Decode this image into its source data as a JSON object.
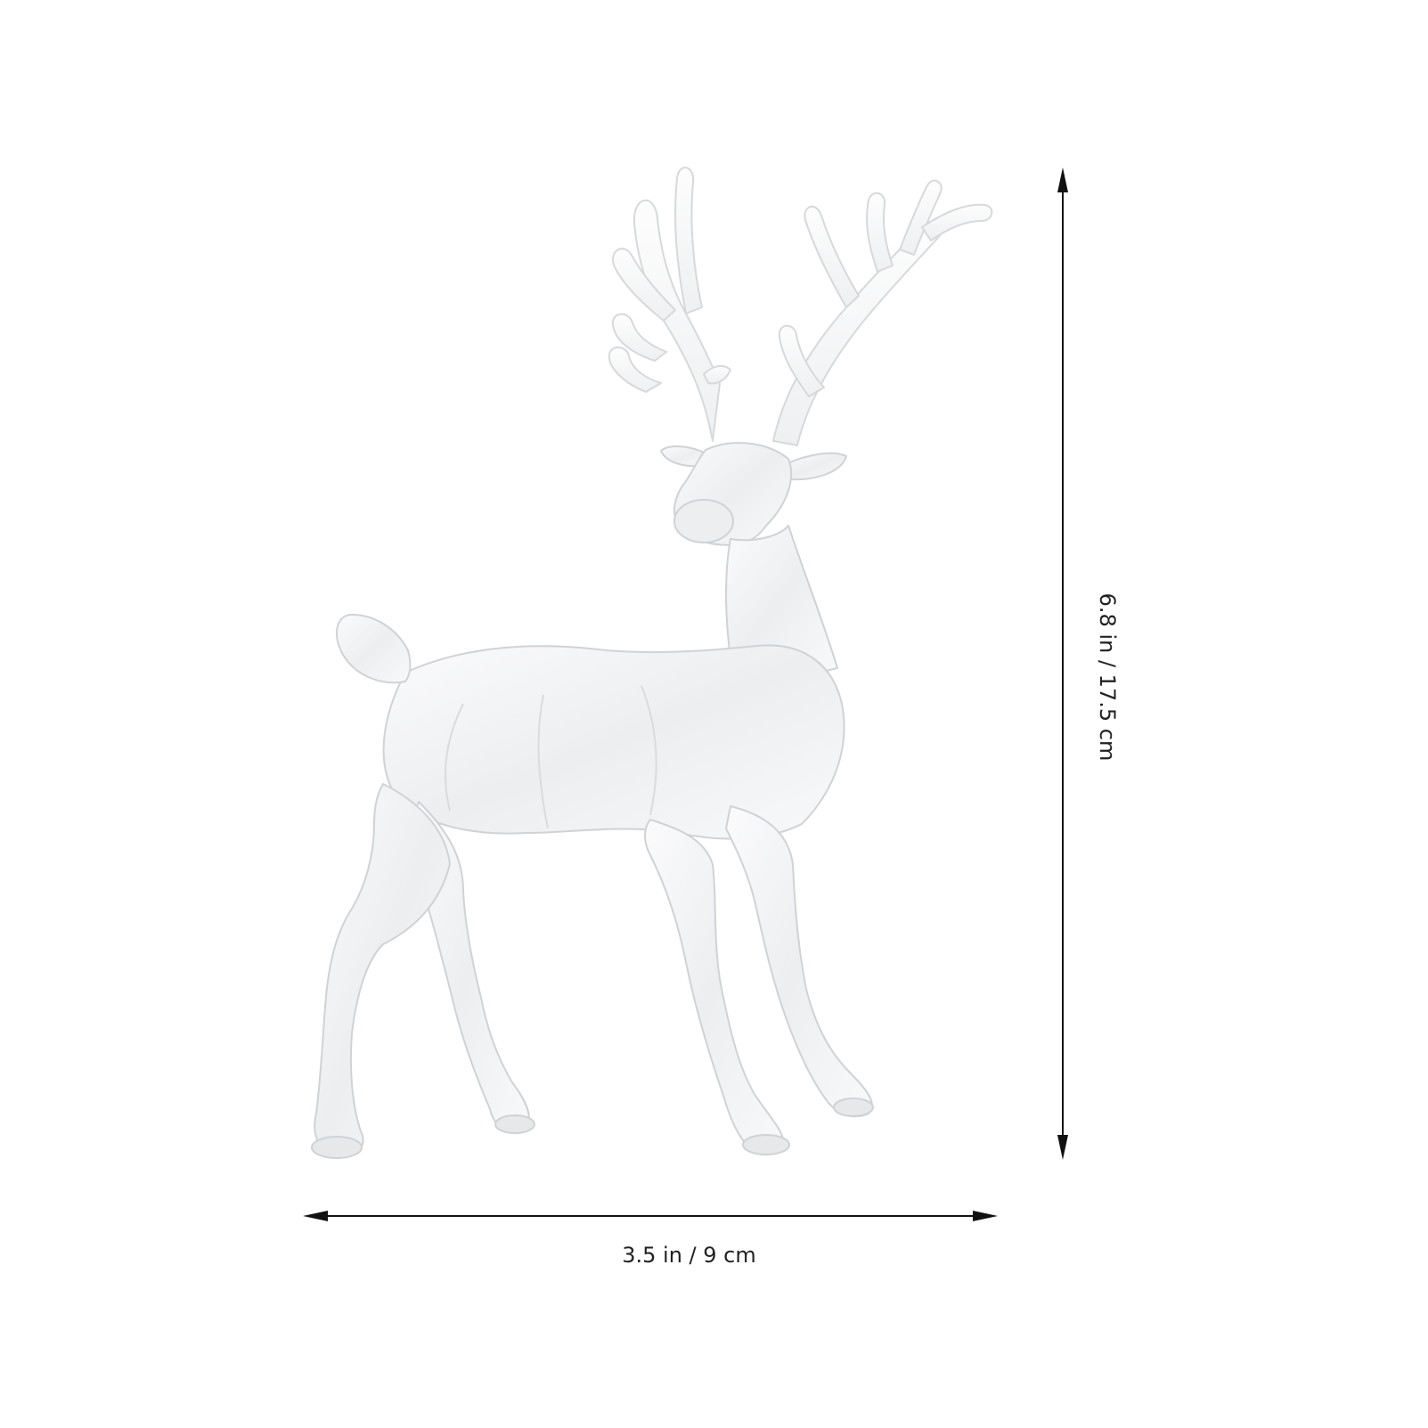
{
  "product": {
    "subject": "clear acrylic reindeer figurine",
    "colors": {
      "background": "#ffffff",
      "figure_fill": "#f3f4f5",
      "figure_shade": "#dcdfe2",
      "figure_outline": "#c9cdd1",
      "dimension_line": "#111111"
    }
  },
  "dimensions": {
    "width_label": "3.5 in / 9 cm",
    "height_label": "6.8 in / 17.5 cm"
  }
}
